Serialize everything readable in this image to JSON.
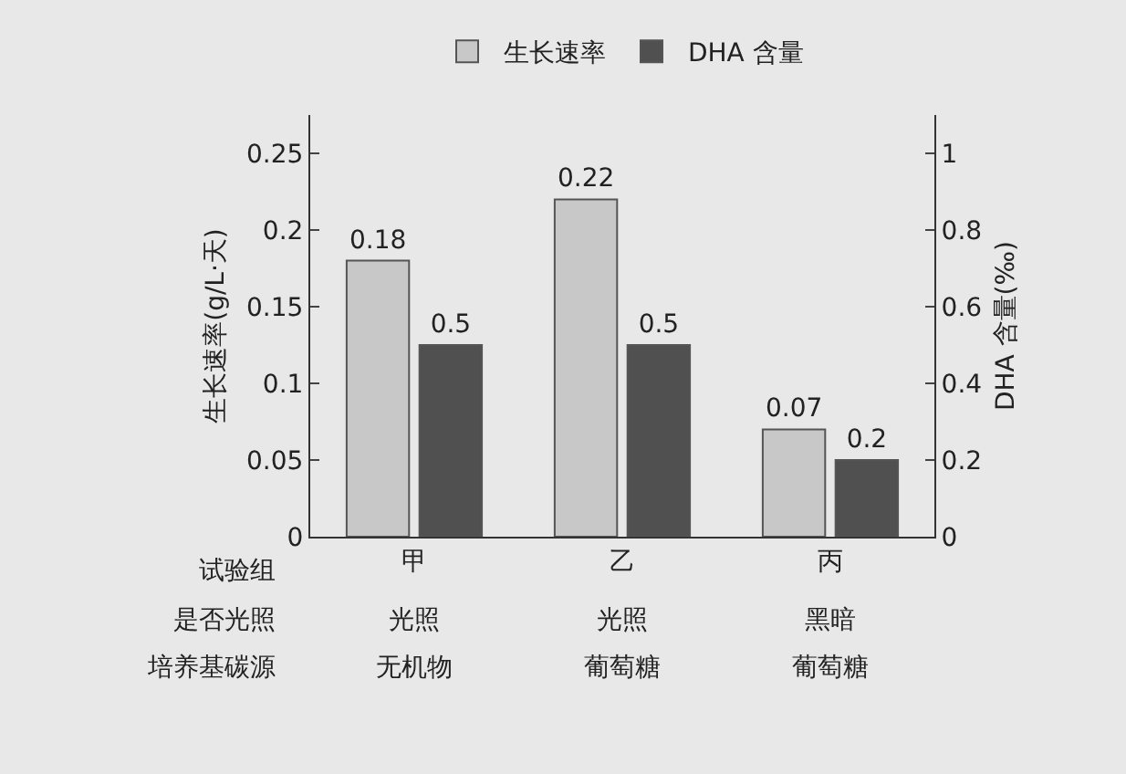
{
  "chart_data": {
    "type": "bar",
    "categories": [
      "甲",
      "乙",
      "丙"
    ],
    "series": [
      {
        "name": "生长速率",
        "color": "#c8c8c8",
        "values": [
          0.18,
          0.22,
          0.07
        ]
      },
      {
        "name": "DHA 含量",
        "color": "#505050",
        "values": [
          0.5,
          0.5,
          0.2
        ],
        "axis": "y2"
      }
    ],
    "xlabel": "试验组",
    "ylabel": "生长速率(g/L·天)",
    "y2label": "DHA 含量(‰)",
    "ylim": [
      0,
      0.275
    ],
    "yticks": [
      0,
      0.05,
      0.1,
      0.15,
      0.2,
      0.25
    ],
    "y2lim": [
      0,
      1.1
    ],
    "y2ticks": [
      0,
      0.2,
      0.4,
      0.6,
      0.8,
      1.0
    ],
    "annotations": [
      "是否光照",
      "光照",
      "光照",
      "黑暗",
      "培养基碳源",
      "无机物",
      "葡萄糖",
      "葡萄糖"
    ],
    "data_labels": true,
    "legend": "top",
    "grid": false
  }
}
